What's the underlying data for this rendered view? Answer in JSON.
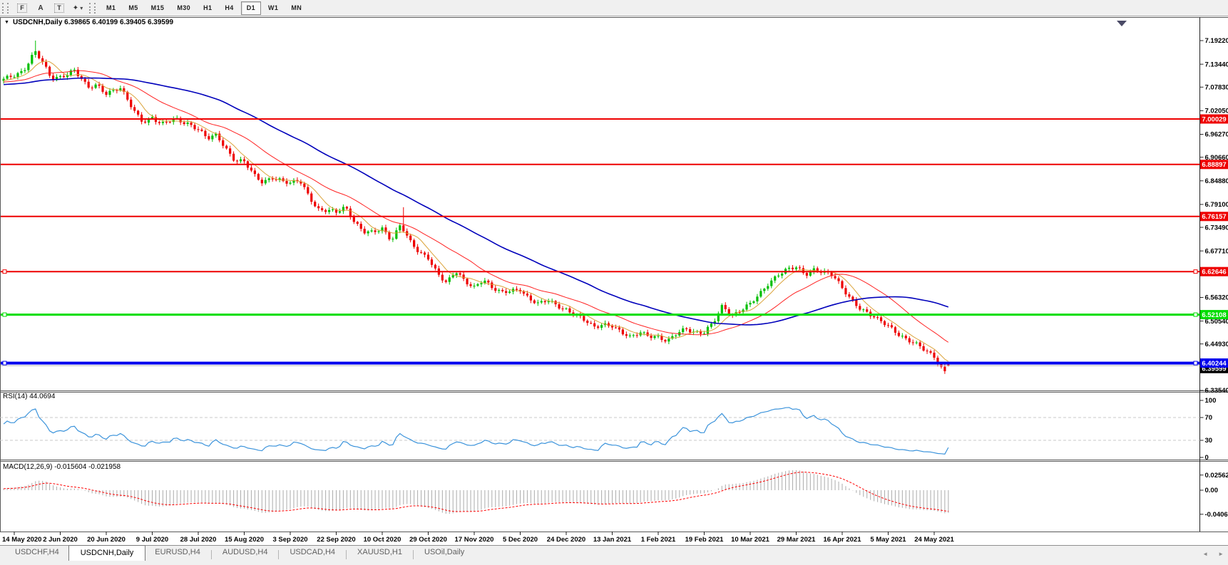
{
  "toolbar": {
    "tools": [
      {
        "id": "fibonacci",
        "glyph": "F",
        "boxed": true
      },
      {
        "id": "text",
        "glyph": "A",
        "boxed": false
      },
      {
        "id": "text-label",
        "glyph": "T",
        "boxed": true
      },
      {
        "id": "shapes",
        "glyph": "✦",
        "boxed": false,
        "dropdown": true
      }
    ],
    "timeframes": [
      "M1",
      "M5",
      "M15",
      "M30",
      "H1",
      "H4",
      "D1",
      "W1",
      "MN"
    ],
    "active_timeframe": "D1"
  },
  "chart": {
    "symbol_title": "USDCNH,Daily",
    "ohlc": {
      "open": "6.39865",
      "high": "6.40199",
      "low": "6.39405",
      "close": "6.39599"
    }
  },
  "chart_data": {
    "type": "candlestick",
    "symbol": "USDCNH",
    "timeframe": "Daily",
    "title": "USDCNH,Daily  6.39865 6.40199 6.39405 6.39599",
    "x_labels": [
      "14 May 2020",
      "2 Jun 2020",
      "20 Jun 2020",
      "9 Jul 2020",
      "28 Jul 2020",
      "15 Aug 2020",
      "3 Sep 2020",
      "22 Sep 2020",
      "10 Oct 2020",
      "29 Oct 2020",
      "17 Nov 2020",
      "5 Dec 2020",
      "24 Dec 2020",
      "13 Jan 2021",
      "1 Feb 2021",
      "19 Feb 2021",
      "10 Mar 2021",
      "29 Mar 2021",
      "16 Apr 2021",
      "5 May 2021",
      "24 May 2021"
    ],
    "y_ticks": [
      "7.19220",
      "7.13440",
      "7.07830",
      "7.02050",
      "6.96270",
      "6.90660",
      "6.84880",
      "6.79100",
      "6.73490",
      "6.67710",
      "6.56320",
      "6.50540",
      "6.44930",
      "6.33540"
    ],
    "y_range": {
      "top": 7.1922,
      "bottom": 6.3354
    },
    "levels": [
      {
        "price": "7.00029",
        "color": "#ee0000",
        "width": 2,
        "selected": false
      },
      {
        "price": "6.88897",
        "color": "#ee0000",
        "width": 2,
        "selected": false
      },
      {
        "price": "6.76157",
        "color": "#ee0000",
        "width": 2,
        "selected": false
      },
      {
        "price": "6.62646",
        "color": "#ee0000",
        "width": 2,
        "selected": true
      },
      {
        "price": "6.52108",
        "color": "#00dd00",
        "width": 3,
        "selected": true
      },
      {
        "price": "6.39599",
        "color": "#bbbbbb",
        "width": 1,
        "selected": false,
        "label_bg": "#000000"
      },
      {
        "price": "6.40244",
        "color": "#0000ee",
        "width": 4,
        "selected": true
      }
    ],
    "price_path": [
      [
        -0.25,
        7.095
      ],
      [
        0.2,
        7.12
      ],
      [
        0.45,
        7.165
      ],
      [
        0.6,
        7.14
      ],
      [
        0.8,
        7.1
      ],
      [
        1.0,
        7.105
      ],
      [
        1.3,
        7.12
      ],
      [
        1.6,
        7.075
      ],
      [
        1.8,
        7.085
      ],
      [
        2.0,
        7.065
      ],
      [
        2.3,
        7.075
      ],
      [
        2.6,
        7.02
      ],
      [
        2.8,
        6.995
      ],
      [
        3.0,
        7.005
      ],
      [
        3.2,
        6.985
      ],
      [
        3.5,
        7.0
      ],
      [
        3.8,
        6.99
      ],
      [
        4.0,
        6.975
      ],
      [
        4.2,
        6.95
      ],
      [
        4.4,
        6.96
      ],
      [
        4.6,
        6.93
      ],
      [
        4.8,
        6.9
      ],
      [
        5.0,
        6.895
      ],
      [
        5.2,
        6.862
      ],
      [
        5.4,
        6.845
      ],
      [
        5.6,
        6.86
      ],
      [
        5.8,
        6.85
      ],
      [
        6.0,
        6.84
      ],
      [
        6.2,
        6.85
      ],
      [
        6.4,
        6.815
      ],
      [
        6.6,
        6.78
      ],
      [
        6.8,
        6.775
      ],
      [
        7.0,
        6.77
      ],
      [
        7.2,
        6.785
      ],
      [
        7.4,
        6.75
      ],
      [
        7.6,
        6.725
      ],
      [
        7.8,
        6.72
      ],
      [
        8.0,
        6.73
      ],
      [
        8.2,
        6.705
      ],
      [
        8.4,
        6.745
      ],
      [
        8.6,
        6.7
      ],
      [
        8.8,
        6.67
      ],
      [
        9.0,
        6.66
      ],
      [
        9.2,
        6.625
      ],
      [
        9.4,
        6.6
      ],
      [
        9.6,
        6.625
      ],
      [
        9.8,
        6.6
      ],
      [
        10.0,
        6.59
      ],
      [
        10.2,
        6.61
      ],
      [
        10.4,
        6.585
      ],
      [
        10.6,
        6.572
      ],
      [
        10.8,
        6.58
      ],
      [
        11.0,
        6.585
      ],
      [
        11.2,
        6.56
      ],
      [
        11.4,
        6.545
      ],
      [
        11.6,
        6.555
      ],
      [
        11.8,
        6.545
      ],
      [
        12.0,
        6.535
      ],
      [
        12.2,
        6.52
      ],
      [
        12.4,
        6.505
      ],
      [
        12.6,
        6.49
      ],
      [
        12.8,
        6.5
      ],
      [
        13.0,
        6.495
      ],
      [
        13.2,
        6.475
      ],
      [
        13.4,
        6.463
      ],
      [
        13.6,
        6.48
      ],
      [
        13.8,
        6.472
      ],
      [
        14.0,
        6.465
      ],
      [
        14.2,
        6.452
      ],
      [
        14.4,
        6.475
      ],
      [
        14.6,
        6.49
      ],
      [
        14.8,
        6.478
      ],
      [
        15.0,
        6.475
      ],
      [
        15.2,
        6.5
      ],
      [
        15.4,
        6.545
      ],
      [
        15.6,
        6.52
      ],
      [
        15.8,
        6.532
      ],
      [
        16.0,
        6.545
      ],
      [
        16.2,
        6.57
      ],
      [
        16.4,
        6.6
      ],
      [
        16.6,
        6.62
      ],
      [
        16.8,
        6.63
      ],
      [
        17.0,
        6.635
      ],
      [
        17.2,
        6.62
      ],
      [
        17.4,
        6.635
      ],
      [
        17.6,
        6.625
      ],
      [
        17.8,
        6.615
      ],
      [
        18.0,
        6.585
      ],
      [
        18.2,
        6.56
      ],
      [
        18.4,
        6.537
      ],
      [
        18.6,
        6.52
      ],
      [
        18.8,
        6.505
      ],
      [
        19.0,
        6.495
      ],
      [
        19.2,
        6.478
      ],
      [
        19.4,
        6.46
      ],
      [
        19.6,
        6.447
      ],
      [
        19.8,
        6.433
      ],
      [
        20.0,
        6.42
      ],
      [
        20.1,
        6.402
      ],
      [
        20.2,
        6.386
      ],
      [
        20.3,
        6.372
      ],
      [
        20.38,
        6.368
      ],
      [
        20.46,
        6.388
      ],
      [
        20.53,
        6.396
      ]
    ],
    "wick_events": [
      {
        "tick": 0.45,
        "extra_high": 0.02
      },
      {
        "tick": 8.45,
        "extra_high": 0.04
      }
    ],
    "candle_colors": {
      "bull": "#00be00",
      "bear": "#ee0000"
    },
    "moving_averages": [
      {
        "period": 7,
        "color": "#dba33a",
        "width": 1
      },
      {
        "period": 22,
        "color": "#ff2222",
        "width": 1
      },
      {
        "period": 55,
        "color": "#0000bb",
        "width": 1.6
      }
    ],
    "rsi": {
      "label": "RSI(14) 44.0694",
      "period": 14,
      "current": 44.0694,
      "color": "#3b93db",
      "guides": [
        70,
        30
      ],
      "ticks": [
        {
          "v": 100,
          "t": "100"
        },
        {
          "v": 70,
          "t": "70"
        },
        {
          "v": 30,
          "t": "30"
        },
        {
          "v": 0,
          "t": "0"
        }
      ]
    },
    "macd": {
      "label": "MACD(12,26,9) -0.015604 -0.021958",
      "fast": 12,
      "slow": 26,
      "smooth": 9,
      "current": -0.015604,
      "current_signal": -0.021958,
      "hist_color": "#ababab",
      "signal_color": "#ff0000",
      "ticks": [
        {
          "v": 0.02562,
          "t": "0.02562"
        },
        {
          "v": 0,
          "t": "0.00"
        },
        {
          "v": -0.04068,
          "t": "-0.04068"
        }
      ]
    }
  },
  "bottom_tabs": {
    "items": [
      {
        "label": "USDCHF,H4",
        "active": false
      },
      {
        "label": "USDCNH,Daily",
        "active": true
      },
      {
        "label": "EURUSD,H4",
        "active": false
      },
      {
        "label": "AUDUSD,H4",
        "active": false
      },
      {
        "label": "USDCAD,H4",
        "active": false
      },
      {
        "label": "XAUUSD,H1",
        "active": false
      },
      {
        "label": "USOil,Daily",
        "active": false
      }
    ],
    "scroll_left": "◄",
    "scroll_right": "►"
  }
}
